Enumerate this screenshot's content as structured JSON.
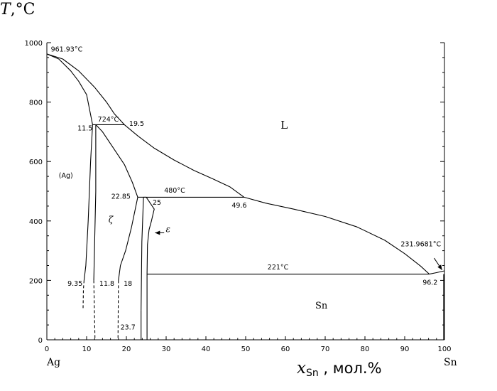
{
  "chart_data": {
    "type": "line",
    "title": "",
    "y_title": {
      "var": "T",
      "unit": ",°C"
    },
    "x_title": {
      "var": "x",
      "sub": "Sn",
      "unit": " , мол.%"
    },
    "xlim": [
      0,
      100
    ],
    "ylim": [
      0,
      1000
    ],
    "x_ticks": [
      0,
      10,
      20,
      30,
      40,
      50,
      60,
      70,
      80,
      90,
      100
    ],
    "y_ticks": [
      0,
      200,
      400,
      600,
      800,
      1000
    ],
    "left_component": "Ag",
    "right_component": "Sn",
    "series": [
      {
        "points": [
          [
            0,
            961.93
          ],
          [
            3,
            945
          ],
          [
            6,
            905
          ],
          [
            8,
            870
          ],
          [
            10,
            825
          ],
          [
            11.5,
            724
          ]
        ]
      },
      {
        "points": [
          [
            0,
            961.93
          ],
          [
            4,
            945
          ],
          [
            8,
            905
          ],
          [
            12,
            850
          ],
          [
            15,
            800
          ],
          [
            17,
            760
          ],
          [
            19.5,
            724
          ]
        ]
      },
      {
        "points": [
          [
            19.5,
            724
          ],
          [
            23,
            685
          ],
          [
            27,
            645
          ],
          [
            32,
            605
          ],
          [
            37,
            570
          ],
          [
            42,
            540
          ],
          [
            46,
            515
          ],
          [
            49.6,
            480
          ],
          [
            55,
            460
          ],
          [
            62,
            440
          ],
          [
            70,
            415
          ],
          [
            78,
            380
          ],
          [
            85,
            335
          ],
          [
            90,
            290
          ],
          [
            94,
            248
          ],
          [
            96.2,
            221
          ]
        ]
      },
      {
        "points": [
          [
            96.2,
            221
          ],
          [
            98,
            226
          ],
          [
            100,
            231.97
          ]
        ]
      },
      {
        "points": [
          [
            11.5,
            724
          ],
          [
            11,
            600
          ],
          [
            10.4,
            400
          ],
          [
            9.8,
            250
          ],
          [
            9.35,
            200
          ]
        ]
      },
      {
        "points": [
          [
            9.35,
            200
          ],
          [
            9.2,
            170
          ],
          [
            9.1,
            105
          ]
        ],
        "dashed": true
      },
      {
        "points": [
          [
            12.3,
            724
          ],
          [
            12.3,
            500
          ],
          [
            11.8,
            200
          ]
        ]
      },
      {
        "points": [
          [
            11.8,
            200
          ],
          [
            12.1,
            0
          ]
        ],
        "dashed": true
      },
      {
        "points": [
          [
            12.3,
            724
          ],
          [
            14,
            700
          ],
          [
            16.5,
            650
          ],
          [
            19.5,
            590
          ],
          [
            21.5,
            530
          ],
          [
            22.85,
            480
          ]
        ]
      },
      {
        "points": [
          [
            22.85,
            480
          ],
          [
            21.3,
            380
          ],
          [
            19.8,
            300
          ],
          [
            18.5,
            250
          ],
          [
            18,
            200
          ]
        ]
      },
      {
        "points": [
          [
            18,
            200
          ],
          [
            17.9,
            0
          ]
        ],
        "dashed": true
      },
      {
        "points": [
          [
            22.85,
            480
          ],
          [
            24.3,
            480
          ]
        ]
      },
      {
        "points": [
          [
            24.3,
            480
          ],
          [
            23.9,
            330
          ],
          [
            23.7,
            100
          ]
        ]
      },
      {
        "points": [
          [
            23.7,
            100
          ],
          [
            23.7,
            0
          ]
        ]
      },
      {
        "points": [
          [
            24.3,
            480
          ],
          [
            25,
            480
          ],
          [
            27,
            440
          ],
          [
            26.3,
            400
          ],
          [
            25.7,
            370
          ],
          [
            25.3,
            320
          ],
          [
            25.2,
            221
          ]
        ]
      },
      {
        "points": [
          [
            25.2,
            221
          ],
          [
            25.2,
            0
          ]
        ]
      },
      {
        "points": [
          [
            11.5,
            724
          ],
          [
            19.5,
            724
          ]
        ]
      },
      {
        "points": [
          [
            24.3,
            480
          ],
          [
            49.6,
            480
          ]
        ]
      },
      {
        "points": [
          [
            25.2,
            221
          ],
          [
            96.2,
            221
          ]
        ]
      },
      {
        "points": [
          [
            99.8,
            221
          ],
          [
            99.8,
            0
          ]
        ]
      }
    ],
    "arrows": [
      {
        "from": [
          29.5,
          360
        ],
        "to": [
          27.2,
          360
        ]
      },
      {
        "from": [
          97.4,
          275
        ],
        "to": [
          99.4,
          235
        ]
      }
    ],
    "labels": [
      {
        "text": "961.93°C",
        "x": 1,
        "y": 970
      },
      {
        "text": "724°C",
        "x": 12.8,
        "y": 735
      },
      {
        "text": "11.5",
        "x": 7.7,
        "y": 705
      },
      {
        "text": "19.5",
        "x": 20.7,
        "y": 720
      },
      {
        "text": "L",
        "x": 58.8,
        "y": 710
      },
      {
        "text": "(Ag)",
        "x": 3,
        "y": 545
      },
      {
        "text": "480°C",
        "x": 29.5,
        "y": 495
      },
      {
        "text": "22.85",
        "x": 16.2,
        "y": 475
      },
      {
        "text": "25",
        "x": 26.6,
        "y": 455
      },
      {
        "text": "49.6",
        "x": 46.5,
        "y": 445
      },
      {
        "text": "ζ",
        "x": 15.5,
        "y": 395
      },
      {
        "text": "ε",
        "x": 29.9,
        "y": 362
      },
      {
        "text": "231.9681°C",
        "x": 89,
        "y": 315
      },
      {
        "text": "221°C",
        "x": 55.5,
        "y": 237
      },
      {
        "text": "96.2",
        "x": 94.5,
        "y": 185
      },
      {
        "text": "9.35",
        "x": 5.2,
        "y": 182
      },
      {
        "text": "11.8",
        "x": 13.2,
        "y": 182
      },
      {
        "text": "18",
        "x": 19.3,
        "y": 182
      },
      {
        "text": "Sn",
        "x": 67.5,
        "y": 105
      },
      {
        "text": "23.7",
        "x": 18.5,
        "y": 35
      }
    ]
  }
}
